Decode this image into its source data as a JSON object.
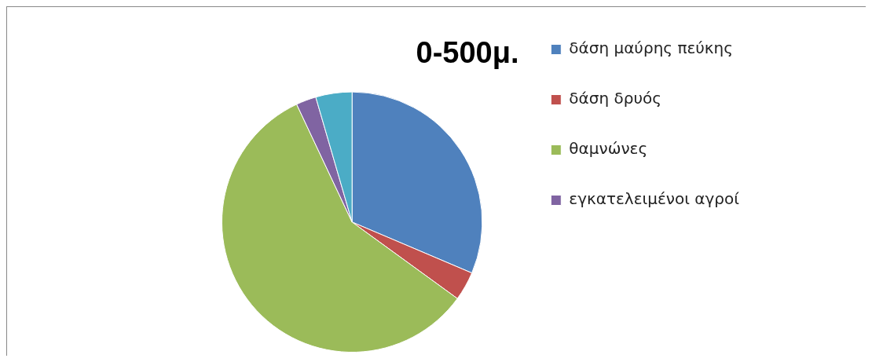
{
  "chart_data": {
    "type": "pie",
    "title": "0-500μ.",
    "categories": [
      "δάση μαύρης πεύκης",
      "δάση δρυός",
      "θαμνώνες",
      "εγκατελειμένοι αγροί",
      null
    ],
    "values": [
      31.4,
      3.6,
      58,
      2.5,
      4.5
    ],
    "colors": [
      "#4f81bd",
      "#c0504d",
      "#9bbb59",
      "#8064a2",
      "#4bacc6"
    ],
    "legend": "right"
  }
}
